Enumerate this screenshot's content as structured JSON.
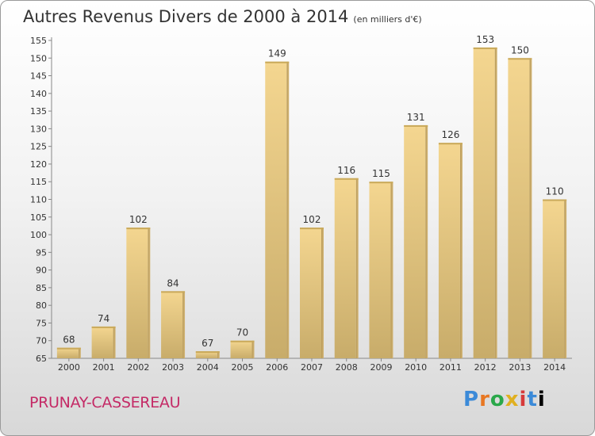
{
  "chart_data": {
    "type": "bar",
    "title": "Autres Revenus Divers de 2000 à 2014",
    "subtitle": "(en milliers d'€)",
    "categories": [
      "2000",
      "2001",
      "2002",
      "2003",
      "2004",
      "2005",
      "2006",
      "2007",
      "2008",
      "2009",
      "2010",
      "2011",
      "2012",
      "2013",
      "2014"
    ],
    "values": [
      68,
      74,
      102,
      84,
      67,
      70,
      149,
      102,
      116,
      115,
      131,
      126,
      153,
      150,
      110
    ],
    "ylim": [
      65,
      155
    ],
    "ytick_step": 5,
    "grid": false,
    "bar_color": "#e8c878"
  },
  "footer": {
    "place": "PRUNAY-CASSEREAU",
    "logo": "Proxiti"
  }
}
